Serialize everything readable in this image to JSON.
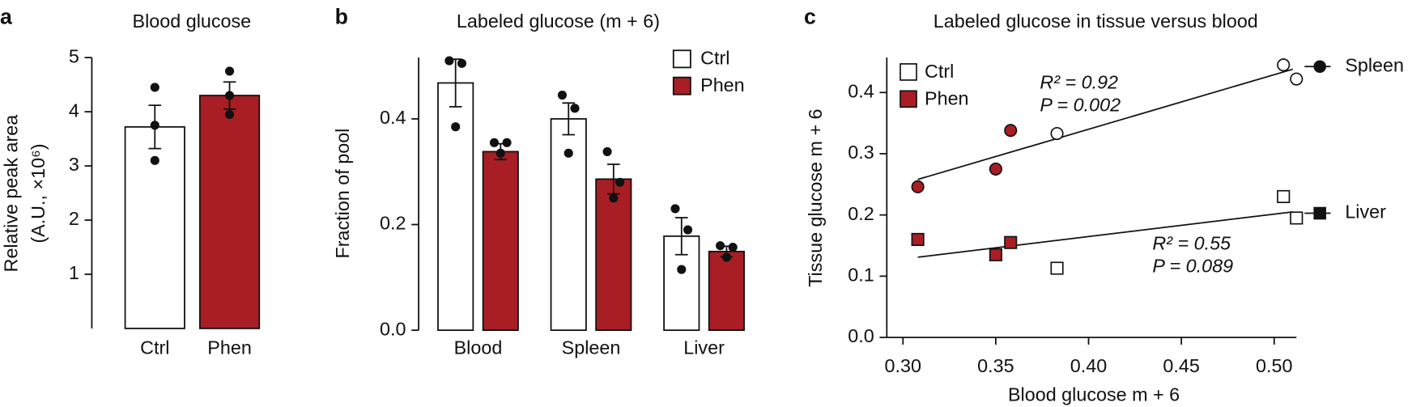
{
  "chart_data": [
    {
      "type": "bar",
      "letter": "a",
      "title": "Blood glucose",
      "ylabel": [
        "Relative peak area",
        "(A.U., ×10⁶)"
      ],
      "categories": [
        "Ctrl",
        "Phen"
      ],
      "values": [
        3.72,
        4.3
      ],
      "errors": [
        0.4,
        0.25
      ],
      "points": [
        [
          4.45,
          3.75,
          3.1
        ],
        [
          4.75,
          4.3,
          3.95
        ]
      ],
      "colors": [
        "#ffffff",
        "#a81e24"
      ],
      "ylim": [
        0,
        5
      ],
      "yticks": [
        1,
        2,
        3,
        4,
        5
      ]
    },
    {
      "type": "grouped_bar",
      "letter": "b",
      "title": "Labeled glucose (m + 6)",
      "ylabel": "Fraction of pool",
      "categories": [
        "Blood",
        "Spleen",
        "Liver"
      ],
      "series": [
        {
          "name": "Ctrl",
          "color": "#ffffff",
          "values": [
            0.468,
            0.4,
            0.178
          ],
          "errors": [
            0.045,
            0.03,
            0.035
          ],
          "points": [
            [
              0.51,
              0.505,
              0.385
            ],
            [
              0.445,
              0.42,
              0.335
            ],
            [
              0.23,
              0.19,
              0.115
            ]
          ]
        },
        {
          "name": "Phen",
          "color": "#a81e24",
          "values": [
            0.338,
            0.286,
            0.149
          ],
          "errors": [
            0.015,
            0.028,
            0.01
          ],
          "points": [
            [
              0.355,
              0.355,
              0.335
            ],
            [
              0.338,
              0.28,
              0.25
            ],
            [
              0.16,
              0.157,
              0.138
            ]
          ]
        }
      ],
      "ylim": [
        0,
        0.516
      ],
      "yticks": [
        {
          "value": 0,
          "label": "0.0"
        },
        0.2,
        0.4
      ]
    },
    {
      "type": "scatter",
      "letter": "c",
      "title": "Labeled glucose in tissue versus blood",
      "xlabel": "Blood glucose m + 6",
      "ylabel": "Tissue glucose m + 6",
      "legend": [
        {
          "name": "Ctrl",
          "color": "#ffffff"
        },
        {
          "name": "Phen",
          "color": "#a81e24"
        }
      ],
      "groups": [
        {
          "name": "Spleen",
          "marker": "circle",
          "points": [
            {
              "x": [
                0.383,
                0.505,
                0.512
              ],
              "y": [
                0.333,
                0.445,
                0.422
              ]
            },
            {
              "x": [
                0.308,
                0.35,
                0.358
              ],
              "y": [
                0.246,
                0.275,
                0.338
              ]
            }
          ],
          "fit": {
            "x": [
              0.308,
              0.51
            ],
            "y": [
              0.258,
              0.438
            ]
          },
          "annotations": [
            "R² = 0.92",
            "P = 0.002"
          ]
        },
        {
          "name": "Liver",
          "marker": "square",
          "points": [
            {
              "x": [
                0.383,
                0.505,
                0.512
              ],
              "y": [
                0.113,
                0.23,
                0.195
              ]
            },
            {
              "x": [
                0.308,
                0.35,
                0.358
              ],
              "y": [
                0.16,
                0.135,
                0.155
              ]
            }
          ],
          "fit": {
            "x": [
              0.308,
              0.51
            ],
            "y": [
              0.131,
              0.205
            ]
          },
          "annotations": [
            "R² = 0.55",
            "P = 0.089"
          ]
        }
      ],
      "xlim": [
        0.2913,
        0.512
      ],
      "xticks": [
        {
          "value": 0.3,
          "label": "0.30"
        },
        0.35,
        {
          "value": 0.4,
          "label": "0.40"
        },
        0.45,
        {
          "value": 0.5,
          "label": "0.50"
        }
      ],
      "ylim": [
        0,
        0.457
      ],
      "yticks": [
        {
          "value": 0,
          "label": "0.0"
        },
        0.1,
        0.2,
        0.3,
        0.4
      ]
    }
  ]
}
